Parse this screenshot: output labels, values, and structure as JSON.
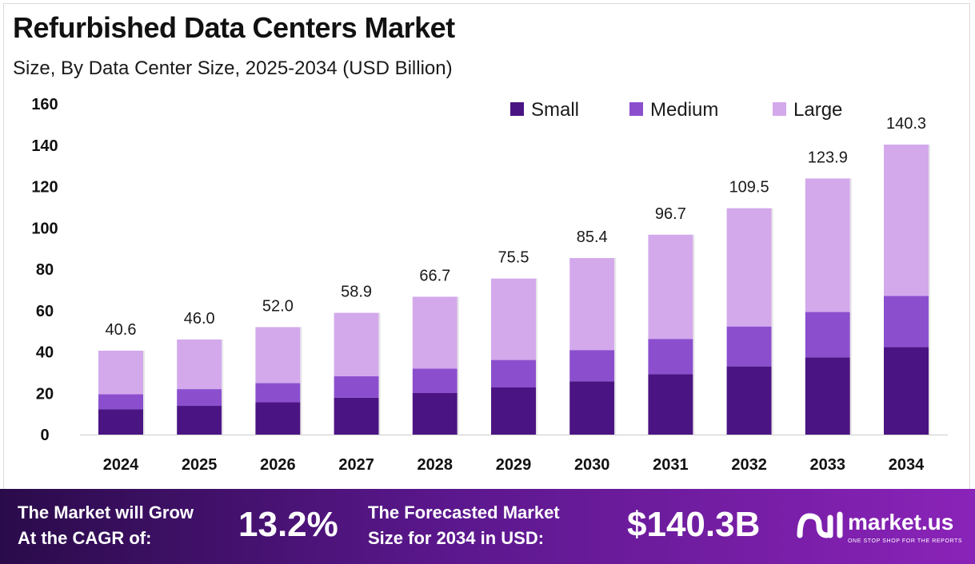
{
  "header": {
    "title": "Refurbished Data Centers Market",
    "subtitle": "Size, By Data Center Size, 2025-2034 (USD Billion)"
  },
  "chart_data": {
    "type": "bar",
    "stacked": true,
    "categories": [
      "2024",
      "2025",
      "2026",
      "2027",
      "2028",
      "2029",
      "2030",
      "2031",
      "2032",
      "2033",
      "2034"
    ],
    "series": [
      {
        "name": "Small",
        "color": "#4b1483",
        "values": [
          12.3,
          13.9,
          15.7,
          17.8,
          20.1,
          22.8,
          25.8,
          29.2,
          33.0,
          37.4,
          42.3
        ]
      },
      {
        "name": "Medium",
        "color": "#8b4fce",
        "values": [
          7.2,
          8.1,
          9.2,
          10.4,
          11.8,
          13.3,
          15.1,
          17.1,
          19.3,
          21.9,
          24.8
        ]
      },
      {
        "name": "Large",
        "color": "#d3a9ec",
        "values": [
          21.1,
          24.0,
          27.1,
          30.7,
          34.8,
          39.4,
          44.5,
          50.4,
          57.2,
          64.6,
          73.2
        ]
      }
    ],
    "totals": [
      "40.6",
      "46.0",
      "52.0",
      "58.9",
      "66.7",
      "75.5",
      "85.4",
      "96.7",
      "109.5",
      "123.9",
      "140.3"
    ],
    "ylim": [
      0,
      160
    ],
    "yticks": [
      "0",
      "20",
      "40",
      "60",
      "80",
      "100",
      "120",
      "140",
      "160"
    ],
    "xlabel": "",
    "ylabel": "",
    "legend_position": "top-right"
  },
  "footer": {
    "cagr_label_line1": "The Market will Grow",
    "cagr_label_line2": "At the CAGR of:",
    "cagr_value": "13.2%",
    "forecast_label_line1": "The Forecasted Market",
    "forecast_label_line2": "Size for 2034 in USD:",
    "forecast_value": "$140.3B"
  },
  "brand": {
    "name": "market.us",
    "tagline": "ONE STOP SHOP FOR THE REPORTS"
  }
}
